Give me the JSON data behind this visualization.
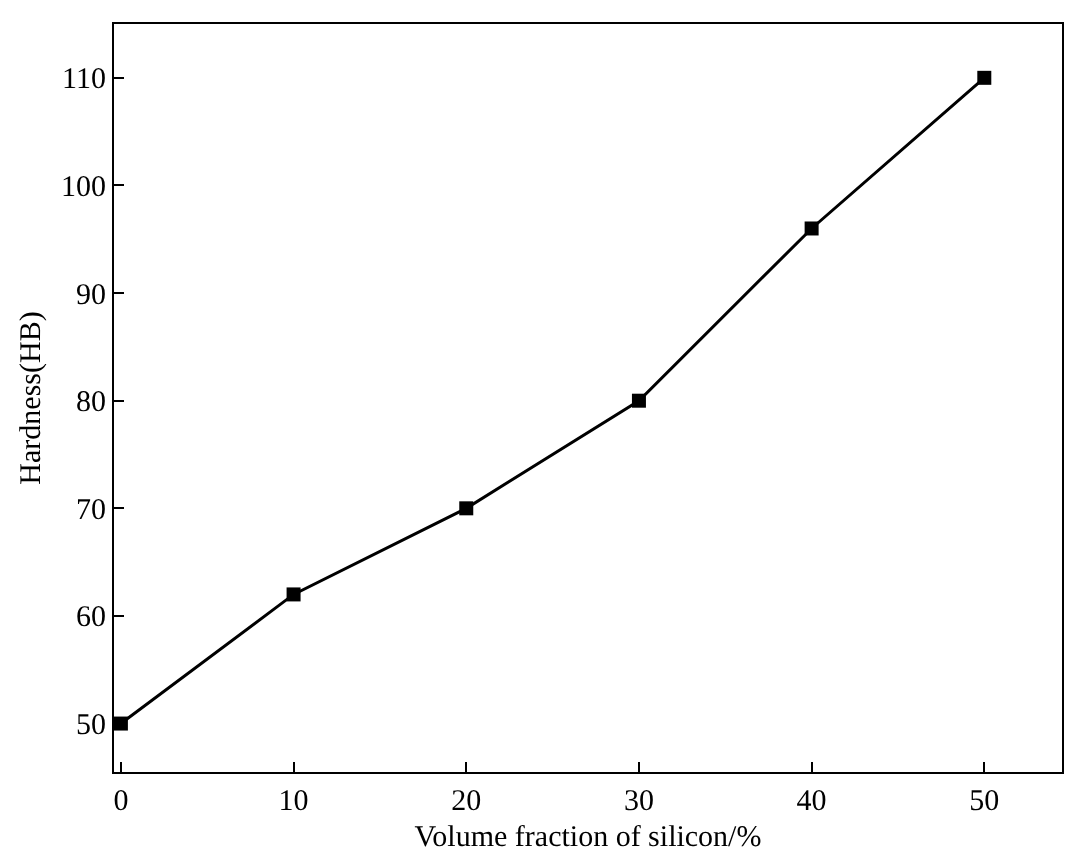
{
  "chart_data": {
    "type": "line",
    "xlabel": "Volume fraction of silicon/%",
    "ylabel": "Hardness(HB)",
    "x": [
      0,
      10,
      20,
      30,
      40,
      50
    ],
    "series": [
      {
        "color": "#000000",
        "values": [
          50,
          62,
          70,
          80,
          96,
          110
        ]
      }
    ],
    "xlim": [
      -0.4,
      54.5
    ],
    "xticks": [
      0,
      10,
      20,
      30,
      40,
      50
    ],
    "ylim": [
      45.5,
      115
    ],
    "yticks": [
      50,
      60,
      70,
      80,
      90,
      100,
      110
    ],
    "grid": false,
    "marker": "square",
    "line_style": "solid"
  }
}
